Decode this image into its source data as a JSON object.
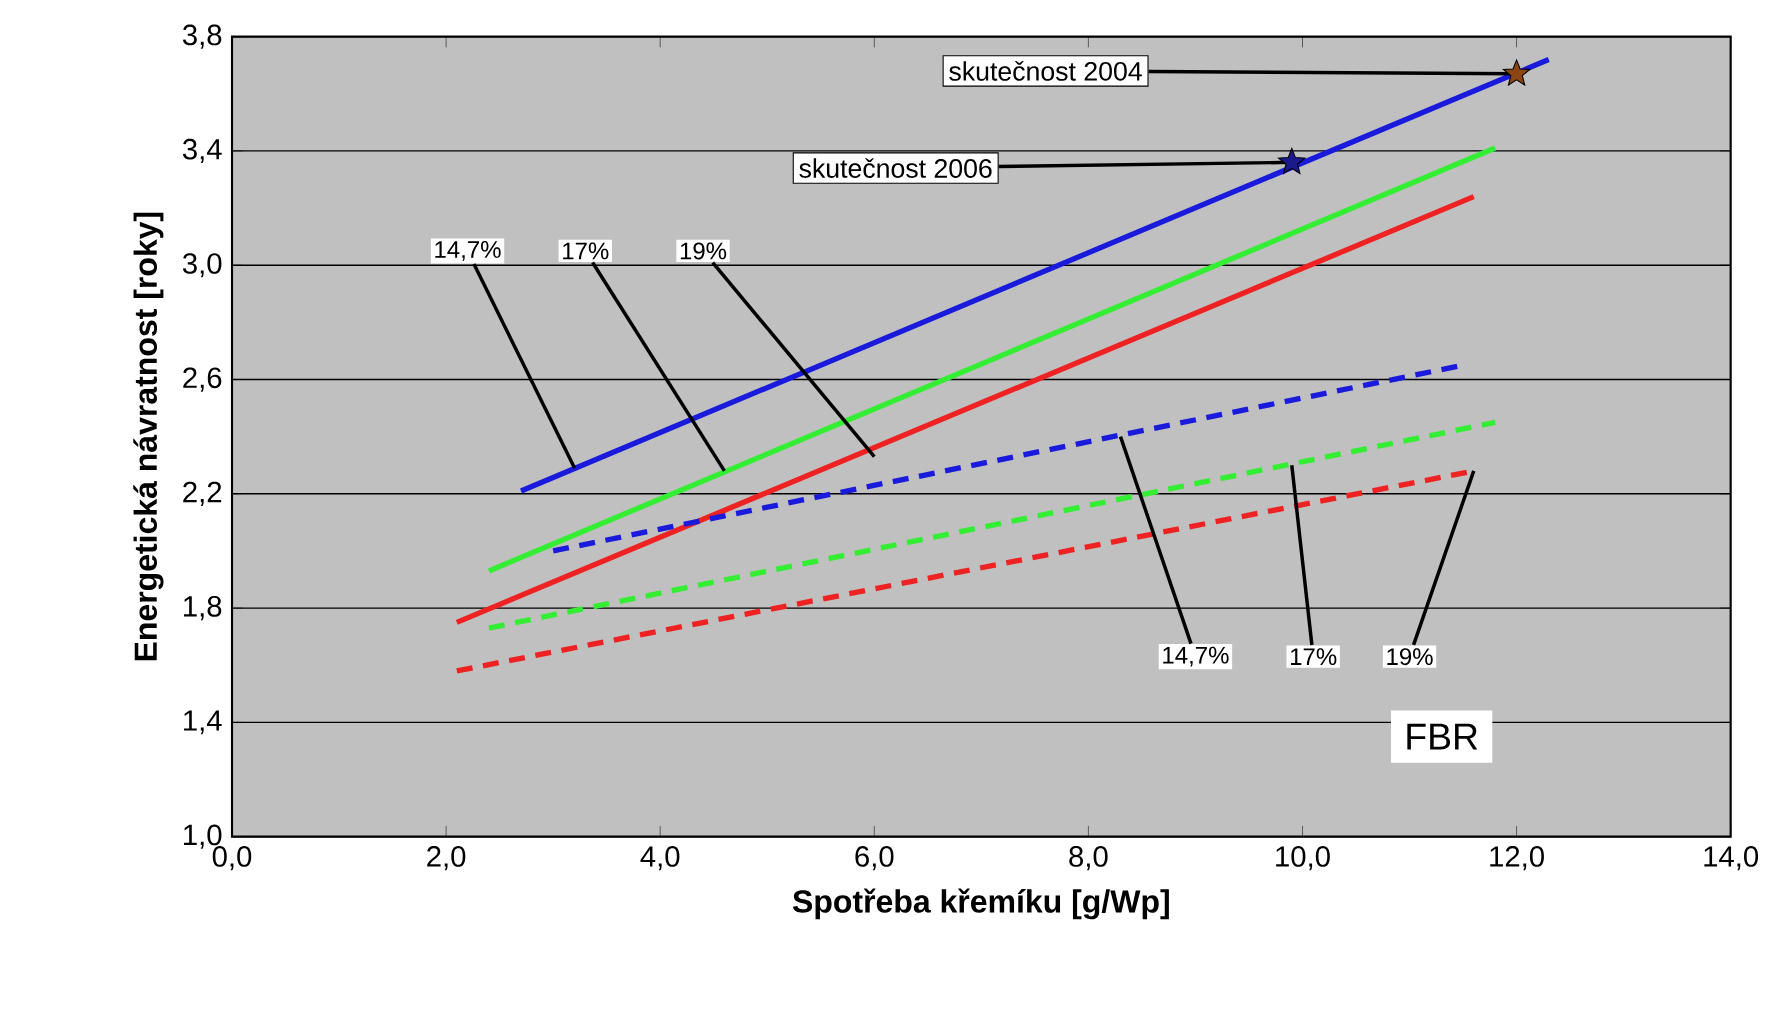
{
  "chart_data": {
    "type": "line",
    "xlabel": "Spotřeba křemíku [g/Wp]",
    "ylabel": "Energetická návratnost [roky]",
    "xlim": [
      0,
      14
    ],
    "ylim": [
      1.0,
      3.8
    ],
    "xticks": [
      {
        "value": 0,
        "label": "0,0"
      },
      {
        "value": 2,
        "label": "2,0"
      },
      {
        "value": 4,
        "label": "4,0"
      },
      {
        "value": 6,
        "label": "6,0"
      },
      {
        "value": 8,
        "label": "8,0"
      },
      {
        "value": 10,
        "label": "10,0"
      },
      {
        "value": 12,
        "label": "12,0"
      },
      {
        "value": 14,
        "label": "14,0"
      }
    ],
    "yticks": [
      {
        "value": 1.0,
        "label": "1,0"
      },
      {
        "value": 1.4,
        "label": "1,4"
      },
      {
        "value": 1.8,
        "label": "1,8"
      },
      {
        "value": 2.2,
        "label": "2,2"
      },
      {
        "value": 2.6,
        "label": "2,6"
      },
      {
        "value": 3.0,
        "label": "3,0"
      },
      {
        "value": 3.4,
        "label": "3,4"
      },
      {
        "value": 3.8,
        "label": "3,8"
      }
    ],
    "grid": "y",
    "series": [
      {
        "color": "#1a1add",
        "line_style": "solid",
        "marker": "none",
        "x": [
          2.7,
          12.3
        ],
        "values": [
          2.21,
          3.72
        ]
      },
      {
        "color": "#33ee33",
        "line_style": "solid",
        "marker": "none",
        "x": [
          2.4,
          11.8
        ],
        "values": [
          1.93,
          3.41
        ]
      },
      {
        "color": "#ee2222",
        "line_style": "solid",
        "marker": "none",
        "x": [
          2.1,
          11.6
        ],
        "values": [
          1.75,
          3.24
        ]
      },
      {
        "color": "#1a1add",
        "line_style": "dashed",
        "marker": "none",
        "x": [
          3.0,
          11.5
        ],
        "values": [
          2.0,
          2.65
        ]
      },
      {
        "color": "#33ee33",
        "line_style": "dashed",
        "marker": "none",
        "x": [
          2.4,
          11.8
        ],
        "values": [
          1.73,
          2.45
        ]
      },
      {
        "color": "#ee2222",
        "line_style": "dashed",
        "marker": "none",
        "x": [
          2.1,
          11.6
        ],
        "values": [
          1.58,
          2.28
        ]
      },
      {
        "type": "scatter",
        "color": "#1a1a8a",
        "marker": "star",
        "x": [
          9.9
        ],
        "values": [
          3.36
        ]
      },
      {
        "type": "scatter",
        "color": "#8b4513",
        "marker": "star",
        "x": [
          12.0
        ],
        "values": [
          3.67
        ]
      }
    ],
    "annotations": [
      {
        "text": "14,7%",
        "x": 3.2,
        "y": 2.29
      },
      {
        "text": "17%",
        "x": 4.6,
        "y": 2.28
      },
      {
        "text": "19%",
        "x": 6.0,
        "y": 2.33
      },
      {
        "text": "14,7%",
        "x": 8.3,
        "y": 2.4
      },
      {
        "text": "17%",
        "x": 9.9,
        "y": 2.3
      },
      {
        "text": "19%",
        "x": 11.6,
        "y": 2.28
      },
      "FBR",
      {
        "text": "skutečnost 2004",
        "x": 12.0,
        "y": 3.67
      },
      {
        "text": "skutečnost 2006",
        "x": 9.9,
        "y": 3.36
      }
    ]
  }
}
